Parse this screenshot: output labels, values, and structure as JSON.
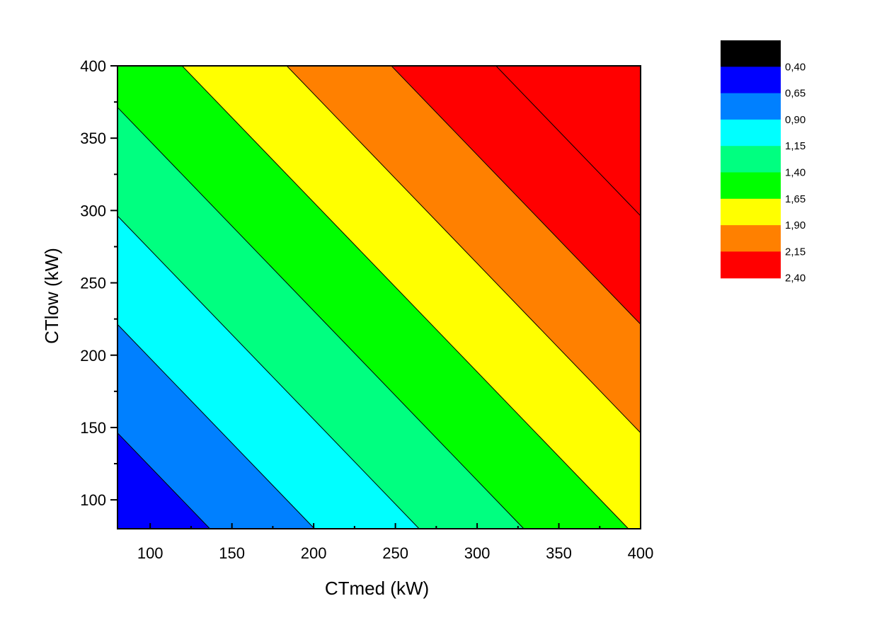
{
  "chart_data": {
    "type": "contour",
    "xlabel": "CTmed (kW)",
    "ylabel": "CTlow (kW)",
    "xlim": [
      80,
      400
    ],
    "ylim": [
      80,
      400
    ],
    "x_ticks": [
      100,
      150,
      200,
      250,
      300,
      350,
      400
    ],
    "y_ticks": [
      100,
      150,
      200,
      250,
      300,
      350,
      400
    ],
    "x_tick_labels": [
      "100",
      "150",
      "200",
      "250",
      "300",
      "350",
      "400"
    ],
    "y_tick_labels": [
      "100",
      "150",
      "200",
      "250",
      "300",
      "350",
      "400"
    ],
    "contour_model": {
      "intercept": -0.15,
      "coef_x": 0.003906,
      "coef_y": 0.003333
    },
    "levels": [
      0.4,
      0.65,
      0.9,
      1.15,
      1.4,
      1.65,
      1.9,
      2.15,
      2.4
    ],
    "level_labels": [
      "0,40",
      "0,65",
      "0,90",
      "1,15",
      "1,40",
      "1,65",
      "1,90",
      "2,15",
      "2,40"
    ],
    "legend_colors": [
      "#000000",
      "#0000ff",
      "#0080ff",
      "#00ffff",
      "#00ff80",
      "#00ff00",
      "#ffff00",
      "#ff8000",
      "#ff0000"
    ],
    "fill_colors": [
      "#0000ff",
      "#0080ff",
      "#00ffff",
      "#00ff80",
      "#00ff00",
      "#ffff00",
      "#ff8000",
      "#ff0000"
    ],
    "legend_position": "right",
    "grid": false
  }
}
